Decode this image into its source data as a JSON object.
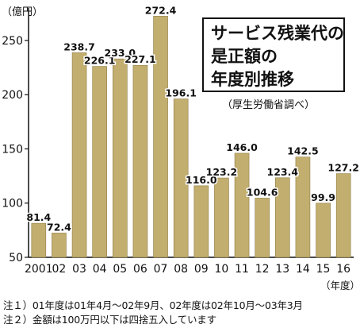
{
  "title_lines": [
    "サービス残業代の",
    "是正額の",
    "年度別推移"
  ],
  "source": "（厚生労働省調べ）",
  "y_unit": "（億円）",
  "x_unit": "（年度）",
  "notes": [
    "注１）01年度は01年4月～02年9月、02年度は02年10月～03年3月",
    "注２）金額は100万円以下は四捨五入しています"
  ],
  "colors": {
    "bar": "#c2ae6e",
    "bar_edge": "#8f7d45",
    "text": "#111111"
  },
  "chart_data": {
    "type": "bar",
    "categories": [
      "2001",
      "02",
      "03",
      "04",
      "05",
      "06",
      "07",
      "08",
      "09",
      "10",
      "11",
      "12",
      "13",
      "14",
      "15",
      "16"
    ],
    "values": [
      81.4,
      72.4,
      238.7,
      226.1,
      233.0,
      227.1,
      272.4,
      196.1,
      116.0,
      123.2,
      146.0,
      104.6,
      123.4,
      142.5,
      99.9,
      127.2
    ],
    "value_labels": [
      "81.4",
      "72.4",
      "238.7",
      "226.1",
      "233.0",
      "227.1",
      "272.4",
      "196.1",
      "116.0",
      "123.2",
      "146.0",
      "104.6",
      "123.4",
      "142.5",
      "99.9",
      "127.2"
    ],
    "ylim": [
      50,
      280
    ],
    "yticks": [
      50,
      100,
      150,
      200,
      250
    ],
    "ytick_labels": [
      "50",
      "100",
      "150",
      "200",
      "250"
    ],
    "ylabel": "（億円）",
    "xlabel": "（年度）",
    "grid": false,
    "legend": "none"
  }
}
